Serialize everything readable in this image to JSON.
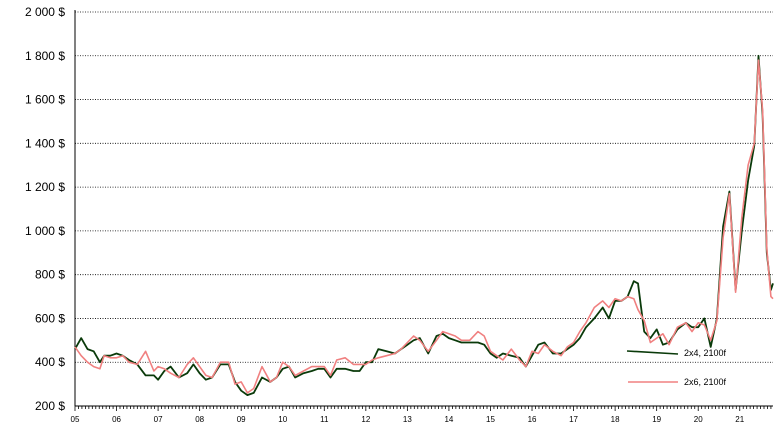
{
  "chart_data": {
    "type": "line",
    "title": "",
    "xlabel": "",
    "ylabel": "",
    "ylim": [
      200,
      2000
    ],
    "xlim": [
      2005,
      2021.8
    ],
    "y_ticks": [
      200,
      400,
      600,
      800,
      1000,
      1200,
      1400,
      1600,
      1800,
      2000
    ],
    "y_tick_labels": [
      "200 $",
      "400 $",
      "600 $",
      "800 $",
      "1 000 $",
      "1 200 $",
      "1 400 $",
      "1 600 $",
      "1 800 $",
      "2 000 $"
    ],
    "x_tick_labels": [
      "05",
      "06",
      "07",
      "08",
      "09",
      "10",
      "11",
      "12",
      "13",
      "14",
      "15",
      "16",
      "17",
      "18",
      "19",
      "20",
      "21"
    ],
    "grid": "horizontal dotted",
    "legend_position": "bottom-right",
    "series": [
      {
        "name": "2x4, 2100f",
        "color": "#0a3a0a",
        "x": [
          2005.0,
          2005.15,
          2005.3,
          2005.45,
          2005.6,
          2005.7,
          2005.85,
          2006.0,
          2006.15,
          2006.3,
          2006.5,
          2006.7,
          2006.9,
          2007.0,
          2007.15,
          2007.3,
          2007.5,
          2007.7,
          2007.85,
          2008.0,
          2008.15,
          2008.3,
          2008.5,
          2008.7,
          2008.85,
          2009.0,
          2009.15,
          2009.3,
          2009.5,
          2009.7,
          2009.85,
          2010.0,
          2010.15,
          2010.3,
          2010.5,
          2010.7,
          2010.85,
          2011.0,
          2011.15,
          2011.3,
          2011.5,
          2011.7,
          2011.85,
          2012.0,
          2012.15,
          2012.3,
          2012.5,
          2012.7,
          2012.85,
          2013.0,
          2013.15,
          2013.3,
          2013.5,
          2013.7,
          2013.85,
          2014.0,
          2014.15,
          2014.3,
          2014.5,
          2014.7,
          2014.85,
          2015.0,
          2015.15,
          2015.3,
          2015.5,
          2015.7,
          2015.85,
          2016.0,
          2016.15,
          2016.3,
          2016.5,
          2016.7,
          2016.85,
          2017.0,
          2017.15,
          2017.3,
          2017.5,
          2017.7,
          2017.85,
          2018.0,
          2018.15,
          2018.3,
          2018.45,
          2018.55,
          2018.7,
          2018.85,
          2019.0,
          2019.15,
          2019.3,
          2019.5,
          2019.7,
          2019.85,
          2020.0,
          2020.15,
          2020.3,
          2020.45,
          2020.6,
          2020.75,
          2020.9,
          2021.05,
          2021.2,
          2021.35,
          2021.45,
          2021.55,
          2021.65,
          2021.75,
          2021.8
        ],
        "values": [
          460,
          510,
          460,
          450,
          400,
          430,
          430,
          440,
          430,
          410,
          390,
          340,
          340,
          320,
          360,
          380,
          330,
          350,
          390,
          350,
          320,
          330,
          390,
          390,
          310,
          270,
          250,
          260,
          330,
          310,
          330,
          370,
          380,
          330,
          350,
          360,
          370,
          370,
          330,
          370,
          370,
          360,
          360,
          400,
          400,
          460,
          450,
          440,
          460,
          480,
          500,
          510,
          440,
          520,
          530,
          510,
          500,
          490,
          490,
          490,
          480,
          440,
          420,
          440,
          430,
          420,
          380,
          430,
          480,
          490,
          440,
          440,
          460,
          480,
          510,
          560,
          600,
          650,
          600,
          680,
          680,
          700,
          770,
          760,
          540,
          510,
          550,
          480,
          490,
          550,
          580,
          560,
          560,
          600,
          470,
          600,
          1020,
          1180,
          730,
          1000,
          1230,
          1390,
          1800,
          1530,
          900,
          730,
          760
        ]
      },
      {
        "name": "2x6, 2100f",
        "color": "#f08080",
        "x": [
          2005.0,
          2005.15,
          2005.3,
          2005.45,
          2005.6,
          2005.7,
          2005.85,
          2006.0,
          2006.15,
          2006.3,
          2006.5,
          2006.7,
          2006.9,
          2007.0,
          2007.15,
          2007.3,
          2007.5,
          2007.7,
          2007.85,
          2008.0,
          2008.15,
          2008.3,
          2008.5,
          2008.7,
          2008.85,
          2009.0,
          2009.15,
          2009.3,
          2009.5,
          2009.7,
          2009.85,
          2010.0,
          2010.15,
          2010.3,
          2010.5,
          2010.7,
          2010.85,
          2011.0,
          2011.15,
          2011.3,
          2011.5,
          2011.7,
          2011.85,
          2012.0,
          2012.15,
          2012.3,
          2012.5,
          2012.7,
          2012.85,
          2013.0,
          2013.15,
          2013.3,
          2013.5,
          2013.7,
          2013.85,
          2014.0,
          2014.15,
          2014.3,
          2014.5,
          2014.7,
          2014.85,
          2015.0,
          2015.15,
          2015.3,
          2015.5,
          2015.7,
          2015.85,
          2016.0,
          2016.15,
          2016.3,
          2016.5,
          2016.7,
          2016.85,
          2017.0,
          2017.15,
          2017.3,
          2017.5,
          2017.7,
          2017.85,
          2018.0,
          2018.15,
          2018.3,
          2018.45,
          2018.55,
          2018.7,
          2018.85,
          2019.0,
          2019.15,
          2019.3,
          2019.5,
          2019.7,
          2019.85,
          2020.0,
          2020.15,
          2020.3,
          2020.45,
          2020.6,
          2020.75,
          2020.9,
          2021.05,
          2021.2,
          2021.35,
          2021.45,
          2021.55,
          2021.65,
          2021.75,
          2021.8
        ],
        "values": [
          470,
          430,
          400,
          380,
          370,
          430,
          420,
          420,
          430,
          400,
          390,
          450,
          360,
          380,
          370,
          350,
          330,
          390,
          420,
          380,
          340,
          330,
          400,
          400,
          300,
          310,
          260,
          280,
          380,
          310,
          330,
          400,
          380,
          340,
          360,
          380,
          380,
          380,
          340,
          410,
          420,
          390,
          390,
          390,
          410,
          420,
          430,
          440,
          460,
          490,
          520,
          500,
          450,
          500,
          540,
          530,
          520,
          500,
          500,
          540,
          520,
          450,
          430,
          410,
          460,
          410,
          380,
          450,
          440,
          480,
          450,
          430,
          470,
          490,
          540,
          580,
          650,
          680,
          650,
          690,
          680,
          700,
          690,
          640,
          590,
          490,
          510,
          530,
          480,
          560,
          580,
          540,
          580,
          570,
          500,
          590,
          970,
          1170,
          720,
          1060,
          1300,
          1400,
          1780,
          1550,
          920,
          700,
          690
        ]
      }
    ]
  }
}
